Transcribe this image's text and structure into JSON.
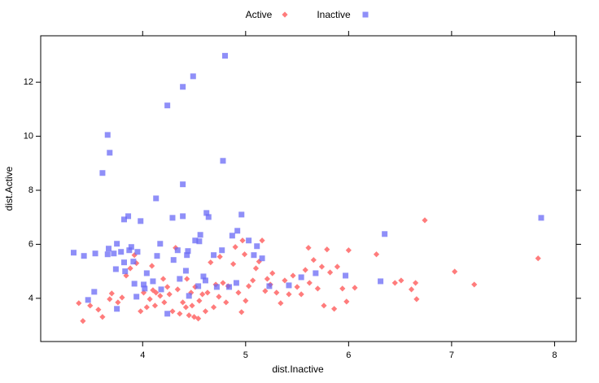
{
  "chart_data": {
    "type": "scatter",
    "xlabel": "dist.Inactive",
    "ylabel": "dist.Active",
    "xlim": [
      3.01,
      8.21
    ],
    "ylim": [
      2.4,
      13.72
    ],
    "xticks": [
      4,
      5,
      6,
      7,
      8
    ],
    "yticks": [
      4,
      6,
      8,
      10,
      12
    ],
    "legend": "top",
    "series": [
      {
        "name": "Active",
        "color": "#ff5050",
        "marker": "diamond",
        "x": [
          3.38,
          3.42,
          3.49,
          3.57,
          3.61,
          3.68,
          3.7,
          3.76,
          3.8,
          3.84,
          3.88,
          3.92,
          3.94,
          3.98,
          4.01,
          4.04,
          4.07,
          4.09,
          4.1,
          4.12,
          4.13,
          4.17,
          4.2,
          4.21,
          4.24,
          4.26,
          4.29,
          4.32,
          4.34,
          4.36,
          4.39,
          4.42,
          4.43,
          4.45,
          4.47,
          4.48,
          4.5,
          4.51,
          4.54,
          4.55,
          4.58,
          4.61,
          4.63,
          4.66,
          4.69,
          4.71,
          4.74,
          4.75,
          4.78,
          4.81,
          4.83,
          4.88,
          4.9,
          4.93,
          4.96,
          4.97,
          4.99,
          5.0,
          5.03,
          5.07,
          5.1,
          5.13,
          5.16,
          5.19,
          5.21,
          5.24,
          5.26,
          5.3,
          5.34,
          5.38,
          5.42,
          5.46,
          5.5,
          5.54,
          5.58,
          5.61,
          5.62,
          5.66,
          5.7,
          5.74,
          5.76,
          5.79,
          5.82,
          5.86,
          5.89,
          5.94,
          5.98,
          6.0,
          6.06,
          6.27,
          6.45,
          6.51,
          6.61,
          6.65,
          6.66,
          6.74,
          7.03,
          7.22,
          7.84
        ],
        "y": [
          3.82,
          3.16,
          3.73,
          3.58,
          3.31,
          3.97,
          4.18,
          3.85,
          4.03,
          4.84,
          5.11,
          5.6,
          5.3,
          3.52,
          4.21,
          3.67,
          3.97,
          5.2,
          4.3,
          3.73,
          4.21,
          4.09,
          4.72,
          3.85,
          4.42,
          4.15,
          3.52,
          5.87,
          4.33,
          3.43,
          3.85,
          3.67,
          4.72,
          3.37,
          4.21,
          3.73,
          3.31,
          4.42,
          3.25,
          3.91,
          4.15,
          3.52,
          4.21,
          5.33,
          3.67,
          4.51,
          4.06,
          5.54,
          4.57,
          3.85,
          4.45,
          5.27,
          5.9,
          4.21,
          3.49,
          6.14,
          5.63,
          3.91,
          4.45,
          4.66,
          5.11,
          5.36,
          6.14,
          4.27,
          4.72,
          4.51,
          4.93,
          4.21,
          3.82,
          4.66,
          4.15,
          4.84,
          4.42,
          4.15,
          5.05,
          5.87,
          4.57,
          5.42,
          4.36,
          5.17,
          3.73,
          5.81,
          4.96,
          3.61,
          5.17,
          4.36,
          3.88,
          5.78,
          4.39,
          5.63,
          4.57,
          4.66,
          4.33,
          4.57,
          3.97,
          6.89,
          4.99,
          4.51,
          5.48
        ]
      },
      {
        "name": "Inactive",
        "color": "#6a6af5",
        "marker": "square",
        "x": [
          3.33,
          3.43,
          3.47,
          3.53,
          3.54,
          3.61,
          3.66,
          3.68,
          3.67,
          3.66,
          3.72,
          3.74,
          3.75,
          3.75,
          3.79,
          3.82,
          3.83,
          3.82,
          3.86,
          3.87,
          3.89,
          3.91,
          3.92,
          3.94,
          3.95,
          3.98,
          4.01,
          4.02,
          4.04,
          4.1,
          4.13,
          4.14,
          4.17,
          4.18,
          4.24,
          4.24,
          4.29,
          4.3,
          4.34,
          4.36,
          4.39,
          4.39,
          4.39,
          4.42,
          4.44,
          4.45,
          4.49,
          4.51,
          4.55,
          4.56,
          4.59,
          4.62,
          4.64,
          4.69,
          4.72,
          4.77,
          4.78,
          4.8,
          4.84,
          4.87,
          4.91,
          4.92,
          4.96,
          5.03,
          5.08,
          5.11,
          5.16,
          5.23,
          5.42,
          5.54,
          5.68,
          5.97,
          6.31,
          6.35,
          7.87,
          4.61,
          4.43,
          4.54
        ],
        "y": [
          5.69,
          5.57,
          3.94,
          4.24,
          5.66,
          8.64,
          10.05,
          9.39,
          5.84,
          5.63,
          5.66,
          5.08,
          6.02,
          3.61,
          5.72,
          5.33,
          5.0,
          6.92,
          7.04,
          5.78,
          5.9,
          5.36,
          4.54,
          4.06,
          5.72,
          6.86,
          4.51,
          4.36,
          4.93,
          4.63,
          7.7,
          5.57,
          6.02,
          4.33,
          11.14,
          3.43,
          6.98,
          5.42,
          5.78,
          4.72,
          11.83,
          8.22,
          7.04,
          5.02,
          5.75,
          4.09,
          12.22,
          6.14,
          6.11,
          6.35,
          4.81,
          7.16,
          7.01,
          5.6,
          4.42,
          5.78,
          9.09,
          12.98,
          4.42,
          6.32,
          4.57,
          6.5,
          7.1,
          6.14,
          5.6,
          5.93,
          5.48,
          4.45,
          4.48,
          4.78,
          4.93,
          4.84,
          4.63,
          6.38,
          6.98,
          4.66,
          5.6,
          4.45
        ]
      }
    ]
  }
}
